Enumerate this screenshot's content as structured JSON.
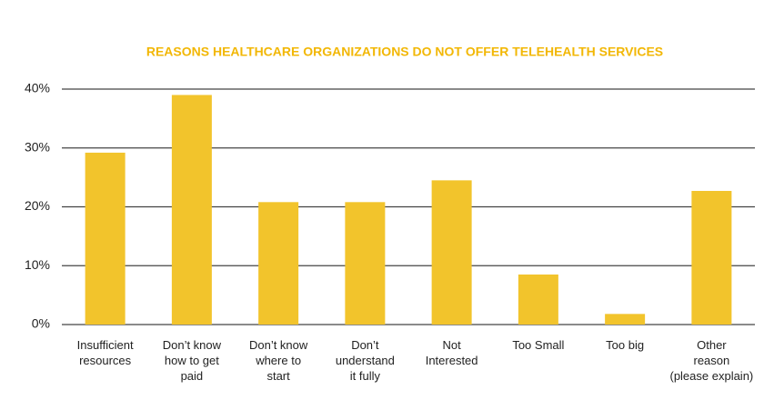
{
  "chart_data": {
    "type": "bar",
    "title": "REASONS HEALTHCARE ORGANIZATIONS DO NOT OFFER TELEHEALTH SERVICES",
    "categories": [
      "Insufficient\nresources",
      "Don’t know\nhow to get\npaid",
      "Don’t know\nwhere to\nstart",
      "Don’t\nunderstand\nit fully",
      "Not\nInterested",
      "Too Small",
      "Too big",
      "Other\nreason\n(please explain)"
    ],
    "values": [
      29.2,
      39,
      20.8,
      20.8,
      24.5,
      8.5,
      1.8,
      22.7
    ],
    "color": "#f2c42c",
    "ylim": [
      0,
      40
    ],
    "yticks": [
      {
        "value": 0,
        "label": "0%"
      },
      {
        "value": 10,
        "label": "10%"
      },
      {
        "value": 20,
        "label": "20%"
      },
      {
        "value": 30,
        "label": "30%"
      },
      {
        "value": 40,
        "label": "40%"
      }
    ],
    "grid": true
  }
}
